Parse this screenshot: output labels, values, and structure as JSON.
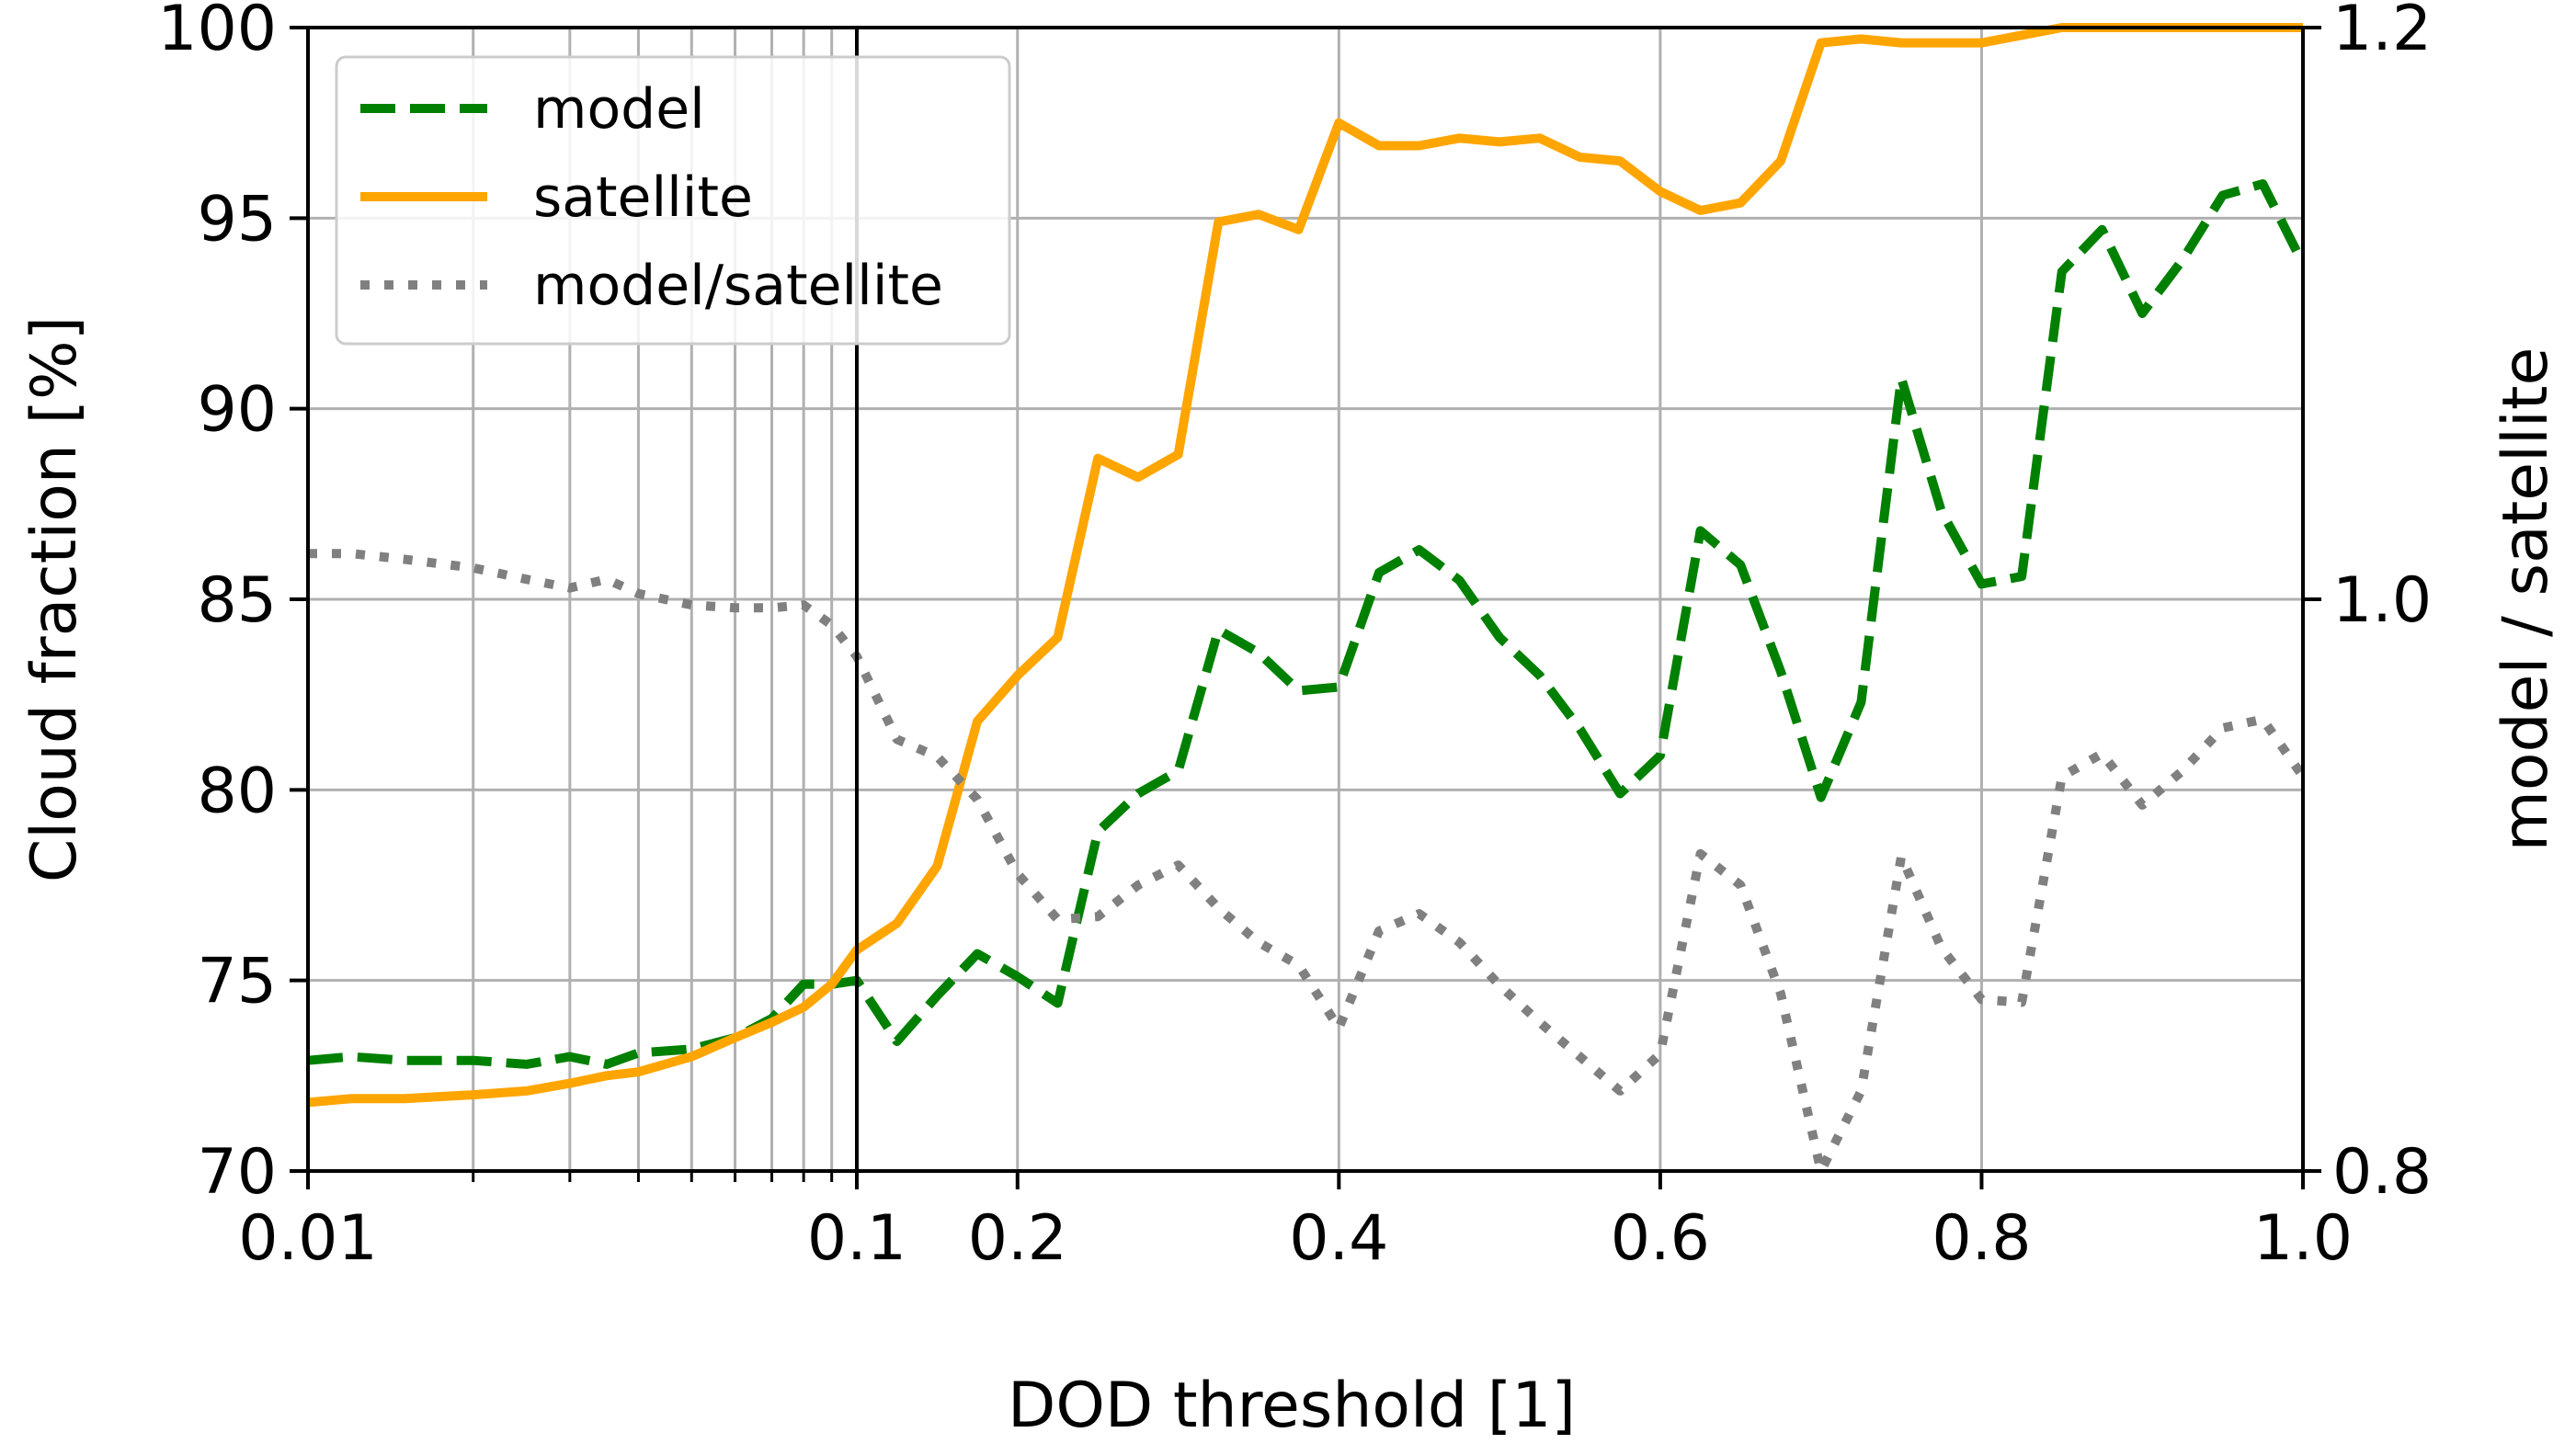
{
  "chart_data": {
    "type": "line",
    "xlabel": "DOD threshold [1]",
    "ylabel": "Cloud fraction [%]",
    "y2label": "model / satellite",
    "x_scale": "log from 0.01 to 0.1, linear from 0.1 to 1.0",
    "xlim": [
      0.01,
      1.0
    ],
    "ylim": [
      70,
      100
    ],
    "y2lim": [
      0.8,
      1.2
    ],
    "x_ticks": [
      {
        "value": 0.01,
        "label": "0.01"
      },
      {
        "value": 0.1,
        "label": "0.1"
      },
      {
        "value": 0.2,
        "label": "0.2"
      },
      {
        "value": 0.4,
        "label": "0.4"
      },
      {
        "value": 0.6,
        "label": "0.6"
      },
      {
        "value": 0.8,
        "label": "0.8"
      },
      {
        "value": 1.0,
        "label": "1.0"
      }
    ],
    "y_ticks": [
      70,
      75,
      80,
      85,
      90,
      95,
      100
    ],
    "y2_ticks": [
      {
        "value": 0.8,
        "label": "0.8"
      },
      {
        "value": 1.0,
        "label": "1.0"
      },
      {
        "value": 1.2,
        "label": "1.2"
      }
    ],
    "grid": true,
    "legend_position": "top-left",
    "series": [
      {
        "name": "model",
        "axis": "left",
        "color": "#008000",
        "style": "dashed",
        "x": [
          0.01,
          0.012,
          0.015,
          0.02,
          0.025,
          0.03,
          0.035,
          0.04,
          0.05,
          0.06,
          0.07,
          0.08,
          0.09,
          0.1,
          0.125,
          0.15,
          0.175,
          0.2,
          0.225,
          0.25,
          0.275,
          0.3,
          0.325,
          0.35,
          0.375,
          0.4,
          0.425,
          0.45,
          0.475,
          0.5,
          0.525,
          0.55,
          0.575,
          0.6,
          0.625,
          0.65,
          0.675,
          0.7,
          0.725,
          0.75,
          0.775,
          0.8,
          0.825,
          0.85,
          0.875,
          0.9,
          0.925,
          0.95,
          0.975,
          1.0
        ],
        "values": [
          72.9,
          73.0,
          72.9,
          72.9,
          72.8,
          73.0,
          72.8,
          73.1,
          73.2,
          73.5,
          74.0,
          74.9,
          74.9,
          75.0,
          73.4,
          74.6,
          75.7,
          75.1,
          74.4,
          78.9,
          79.9,
          80.5,
          84.2,
          83.6,
          82.6,
          82.7,
          85.7,
          86.3,
          85.5,
          84.0,
          83.0,
          81.6,
          79.9,
          80.9,
          86.8,
          85.9,
          83.1,
          79.8,
          82.3,
          90.8,
          87.3,
          85.4,
          85.6,
          93.6,
          94.7,
          92.5,
          93.9,
          95.6,
          95.9,
          93.8
        ]
      },
      {
        "name": "satellite",
        "axis": "left",
        "color": "#ffa500",
        "style": "solid",
        "x": [
          0.01,
          0.012,
          0.015,
          0.02,
          0.025,
          0.03,
          0.035,
          0.04,
          0.05,
          0.06,
          0.07,
          0.08,
          0.09,
          0.1,
          0.125,
          0.15,
          0.175,
          0.2,
          0.225,
          0.25,
          0.275,
          0.3,
          0.325,
          0.35,
          0.375,
          0.4,
          0.425,
          0.45,
          0.475,
          0.5,
          0.525,
          0.55,
          0.575,
          0.6,
          0.625,
          0.65,
          0.675,
          0.7,
          0.725,
          0.75,
          0.775,
          0.8,
          0.825,
          0.85,
          0.875,
          0.9,
          0.925,
          0.95,
          0.975,
          1.0
        ],
        "values": [
          71.8,
          71.9,
          71.9,
          72.0,
          72.1,
          72.3,
          72.5,
          72.6,
          73.0,
          73.5,
          73.9,
          74.3,
          74.9,
          75.8,
          76.5,
          78.0,
          81.8,
          83.0,
          84.0,
          88.7,
          88.2,
          88.8,
          94.9,
          95.1,
          94.7,
          97.5,
          96.9,
          96.9,
          97.1,
          97.0,
          97.1,
          96.6,
          96.5,
          95.7,
          95.2,
          95.4,
          96.5,
          99.6,
          99.7,
          99.6,
          99.6,
          99.6,
          99.8,
          100.0,
          100.0,
          100.0,
          100.0,
          100.0,
          100.0,
          100.0
        ]
      },
      {
        "name": "model/satellite",
        "axis": "right",
        "color": "#808080",
        "style": "dotted",
        "x": [
          0.01,
          0.012,
          0.015,
          0.02,
          0.025,
          0.03,
          0.035,
          0.04,
          0.05,
          0.06,
          0.07,
          0.08,
          0.09,
          0.1,
          0.125,
          0.15,
          0.175,
          0.2,
          0.225,
          0.25,
          0.275,
          0.3,
          0.325,
          0.35,
          0.375,
          0.4,
          0.425,
          0.45,
          0.475,
          0.5,
          0.525,
          0.55,
          0.575,
          0.6,
          0.625,
          0.65,
          0.675,
          0.7,
          0.725,
          0.75,
          0.775,
          0.8,
          0.825,
          0.85,
          0.875,
          0.9,
          0.925,
          0.95,
          0.975,
          1.0
        ],
        "values": [
          1.016,
          1.016,
          1.014,
          1.011,
          1.007,
          1.004,
          1.007,
          1.002,
          0.998,
          0.997,
          0.997,
          0.998,
          0.991,
          0.98,
          0.951,
          0.945,
          0.93,
          0.904,
          0.888,
          0.889,
          0.9,
          0.907,
          0.892,
          0.88,
          0.872,
          0.85,
          0.884,
          0.89,
          0.88,
          0.865,
          0.852,
          0.84,
          0.828,
          0.841,
          0.911,
          0.9,
          0.862,
          0.8,
          0.828,
          0.91,
          0.878,
          0.86,
          0.859,
          0.938,
          0.946,
          0.928,
          0.94,
          0.955,
          0.958,
          0.938
        ]
      }
    ]
  }
}
